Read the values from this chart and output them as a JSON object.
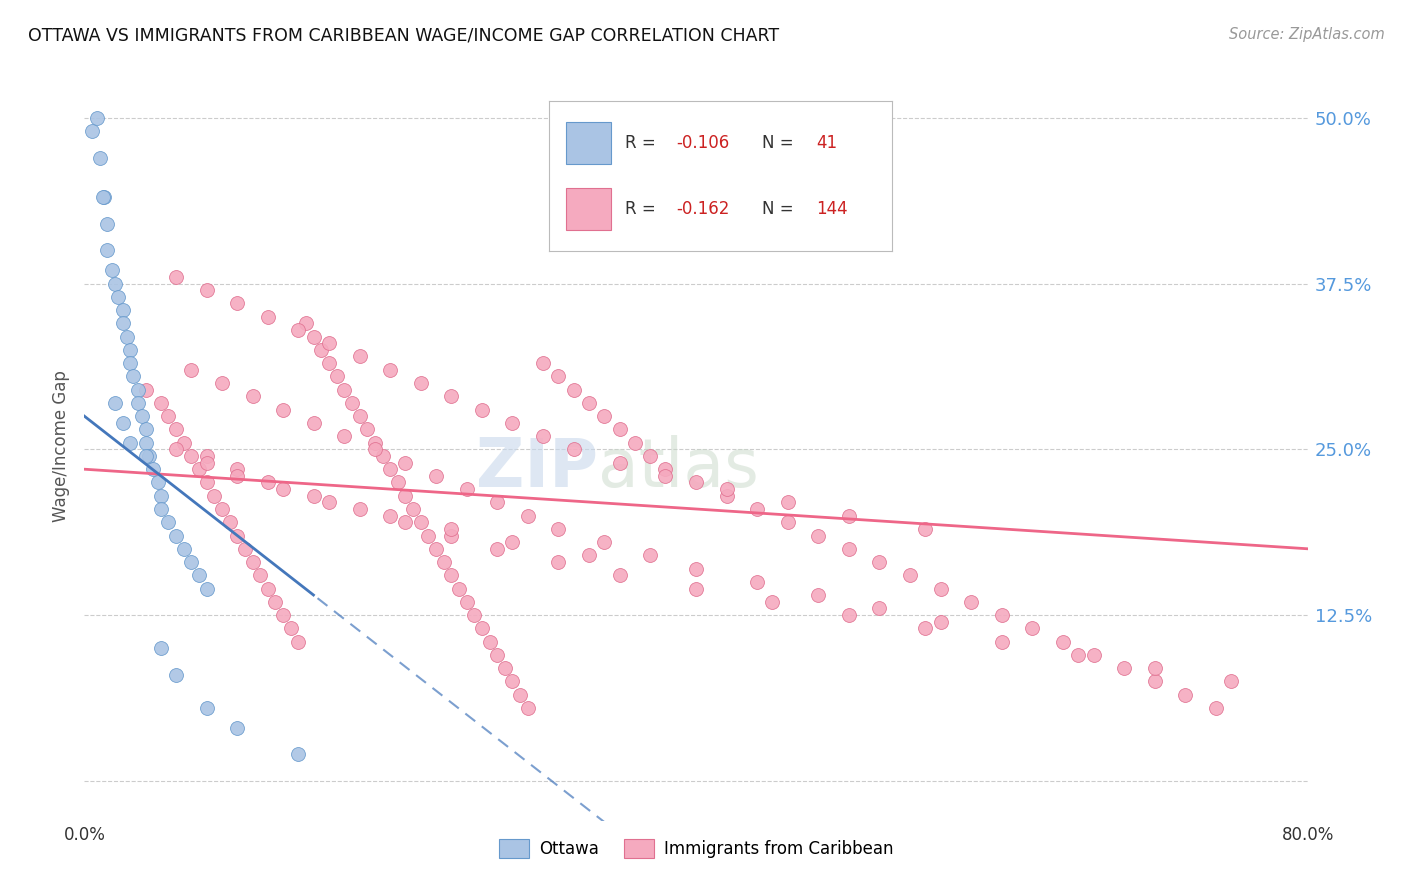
{
  "title": "OTTAWA VS IMMIGRANTS FROM CARIBBEAN WAGE/INCOME GAP CORRELATION CHART",
  "source": "Source: ZipAtlas.com",
  "ylabel": "Wage/Income Gap",
  "yticks": [
    0.0,
    0.125,
    0.25,
    0.375,
    0.5
  ],
  "ytick_labels": [
    "",
    "12.5%",
    "25.0%",
    "37.5%",
    "50.0%"
  ],
  "xlim": [
    0.0,
    0.8
  ],
  "ylim": [
    -0.03,
    0.535
  ],
  "ottawa_color": "#aac4e4",
  "caribbean_color": "#f5aabf",
  "ottawa_edge_color": "#6699cc",
  "caribbean_edge_color": "#e07090",
  "ottawa_line_color": "#4477bb",
  "caribbean_line_color": "#ee6688",
  "watermark_zip": "ZIP",
  "watermark_atlas": "atlas",
  "ottawa_x": [
    0.005,
    0.01,
    0.013,
    0.015,
    0.015,
    0.018,
    0.02,
    0.022,
    0.025,
    0.025,
    0.028,
    0.03,
    0.03,
    0.032,
    0.035,
    0.035,
    0.038,
    0.04,
    0.04,
    0.042,
    0.045,
    0.048,
    0.05,
    0.05,
    0.055,
    0.06,
    0.065,
    0.07,
    0.075,
    0.08,
    0.008,
    0.012,
    0.02,
    0.025,
    0.03,
    0.04,
    0.05,
    0.06,
    0.08,
    0.1,
    0.14
  ],
  "ottawa_y": [
    0.49,
    0.47,
    0.44,
    0.42,
    0.4,
    0.385,
    0.375,
    0.365,
    0.355,
    0.345,
    0.335,
    0.325,
    0.315,
    0.305,
    0.295,
    0.285,
    0.275,
    0.265,
    0.255,
    0.245,
    0.235,
    0.225,
    0.215,
    0.205,
    0.195,
    0.185,
    0.175,
    0.165,
    0.155,
    0.145,
    0.5,
    0.44,
    0.285,
    0.27,
    0.255,
    0.245,
    0.1,
    0.08,
    0.055,
    0.04,
    0.02
  ],
  "caribbean_x": [
    0.04,
    0.05,
    0.055,
    0.06,
    0.065,
    0.07,
    0.075,
    0.08,
    0.085,
    0.09,
    0.095,
    0.1,
    0.105,
    0.11,
    0.115,
    0.12,
    0.125,
    0.13,
    0.135,
    0.14,
    0.145,
    0.15,
    0.155,
    0.16,
    0.165,
    0.17,
    0.175,
    0.18,
    0.185,
    0.19,
    0.195,
    0.2,
    0.205,
    0.21,
    0.215,
    0.22,
    0.225,
    0.23,
    0.235,
    0.24,
    0.245,
    0.25,
    0.255,
    0.26,
    0.265,
    0.27,
    0.275,
    0.28,
    0.285,
    0.29,
    0.3,
    0.31,
    0.32,
    0.33,
    0.34,
    0.35,
    0.36,
    0.37,
    0.38,
    0.4,
    0.42,
    0.44,
    0.46,
    0.48,
    0.5,
    0.52,
    0.54,
    0.56,
    0.58,
    0.6,
    0.62,
    0.64,
    0.66,
    0.68,
    0.7,
    0.72,
    0.74,
    0.06,
    0.08,
    0.1,
    0.12,
    0.14,
    0.16,
    0.18,
    0.2,
    0.22,
    0.24,
    0.26,
    0.28,
    0.3,
    0.32,
    0.35,
    0.38,
    0.42,
    0.46,
    0.5,
    0.55,
    0.07,
    0.09,
    0.11,
    0.13,
    0.15,
    0.17,
    0.19,
    0.21,
    0.23,
    0.25,
    0.27,
    0.29,
    0.31,
    0.34,
    0.37,
    0.4,
    0.44,
    0.48,
    0.52,
    0.56,
    0.08,
    0.1,
    0.12,
    0.15,
    0.18,
    0.21,
    0.24,
    0.27,
    0.31,
    0.35,
    0.4,
    0.45,
    0.5,
    0.55,
    0.6,
    0.65,
    0.7,
    0.75,
    0.06,
    0.08,
    0.1,
    0.13,
    0.16,
    0.2,
    0.24,
    0.28,
    0.33
  ],
  "caribbean_y": [
    0.295,
    0.285,
    0.275,
    0.265,
    0.255,
    0.245,
    0.235,
    0.225,
    0.215,
    0.205,
    0.195,
    0.185,
    0.175,
    0.165,
    0.155,
    0.145,
    0.135,
    0.125,
    0.115,
    0.105,
    0.345,
    0.335,
    0.325,
    0.315,
    0.305,
    0.295,
    0.285,
    0.275,
    0.265,
    0.255,
    0.245,
    0.235,
    0.225,
    0.215,
    0.205,
    0.195,
    0.185,
    0.175,
    0.165,
    0.155,
    0.145,
    0.135,
    0.125,
    0.115,
    0.105,
    0.095,
    0.085,
    0.075,
    0.065,
    0.055,
    0.315,
    0.305,
    0.295,
    0.285,
    0.275,
    0.265,
    0.255,
    0.245,
    0.235,
    0.225,
    0.215,
    0.205,
    0.195,
    0.185,
    0.175,
    0.165,
    0.155,
    0.145,
    0.135,
    0.125,
    0.115,
    0.105,
    0.095,
    0.085,
    0.075,
    0.065,
    0.055,
    0.38,
    0.37,
    0.36,
    0.35,
    0.34,
    0.33,
    0.32,
    0.31,
    0.3,
    0.29,
    0.28,
    0.27,
    0.26,
    0.25,
    0.24,
    0.23,
    0.22,
    0.21,
    0.2,
    0.19,
    0.31,
    0.3,
    0.29,
    0.28,
    0.27,
    0.26,
    0.25,
    0.24,
    0.23,
    0.22,
    0.21,
    0.2,
    0.19,
    0.18,
    0.17,
    0.16,
    0.15,
    0.14,
    0.13,
    0.12,
    0.245,
    0.235,
    0.225,
    0.215,
    0.205,
    0.195,
    0.185,
    0.175,
    0.165,
    0.155,
    0.145,
    0.135,
    0.125,
    0.115,
    0.105,
    0.095,
    0.085,
    0.075,
    0.25,
    0.24,
    0.23,
    0.22,
    0.21,
    0.2,
    0.19,
    0.18,
    0.17
  ]
}
